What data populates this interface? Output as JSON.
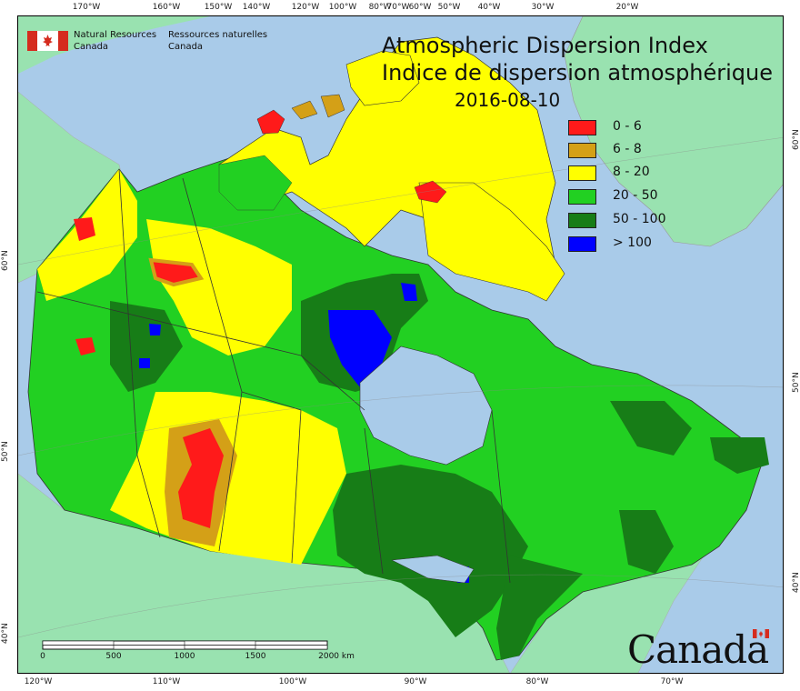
{
  "header": {
    "agency_en": [
      "Natural Resources",
      "Canada"
    ],
    "agency_fr": [
      "Ressources naturelles",
      "Canada"
    ]
  },
  "map": {
    "title_en": "Atmospheric Dispersion Index",
    "title_fr": "Indice de dispersion atmosphérique",
    "date": "2016-08-10",
    "top_ticks": [
      "170°W",
      "160°W",
      "150°W",
      "140°W",
      "120°W",
      "100°W",
      "80°W",
      "70°W",
      "60°W",
      "50°W",
      "40°W",
      "30°W",
      "20°W"
    ],
    "bottom_ticks": [
      "120°W",
      "110°W",
      "100°W",
      "90°W",
      "80°W",
      "70°W"
    ],
    "left_ticks": [
      "60°N",
      "50°N",
      "40°N"
    ],
    "right_ticks": [
      "60°N",
      "50°N",
      "40°N"
    ],
    "legend": [
      {
        "label": "0 - 6",
        "color": "#ff1a1a"
      },
      {
        "label": "6 - 8",
        "color": "#d4a017"
      },
      {
        "label": "8 - 20",
        "color": "#ffff00"
      },
      {
        "label": "20 - 50",
        "color": "#22d022"
      },
      {
        "label": "50 - 100",
        "color": "#177d17"
      },
      {
        "label": "> 100",
        "color": "#0000ff"
      }
    ],
    "scale_labels": [
      "0",
      "500",
      "1000",
      "1500",
      "2000 km"
    ],
    "wordmark": "Canada",
    "colors": {
      "ocean": "#a9cbe9",
      "land": "#99e2b0",
      "border": "#333333"
    }
  }
}
